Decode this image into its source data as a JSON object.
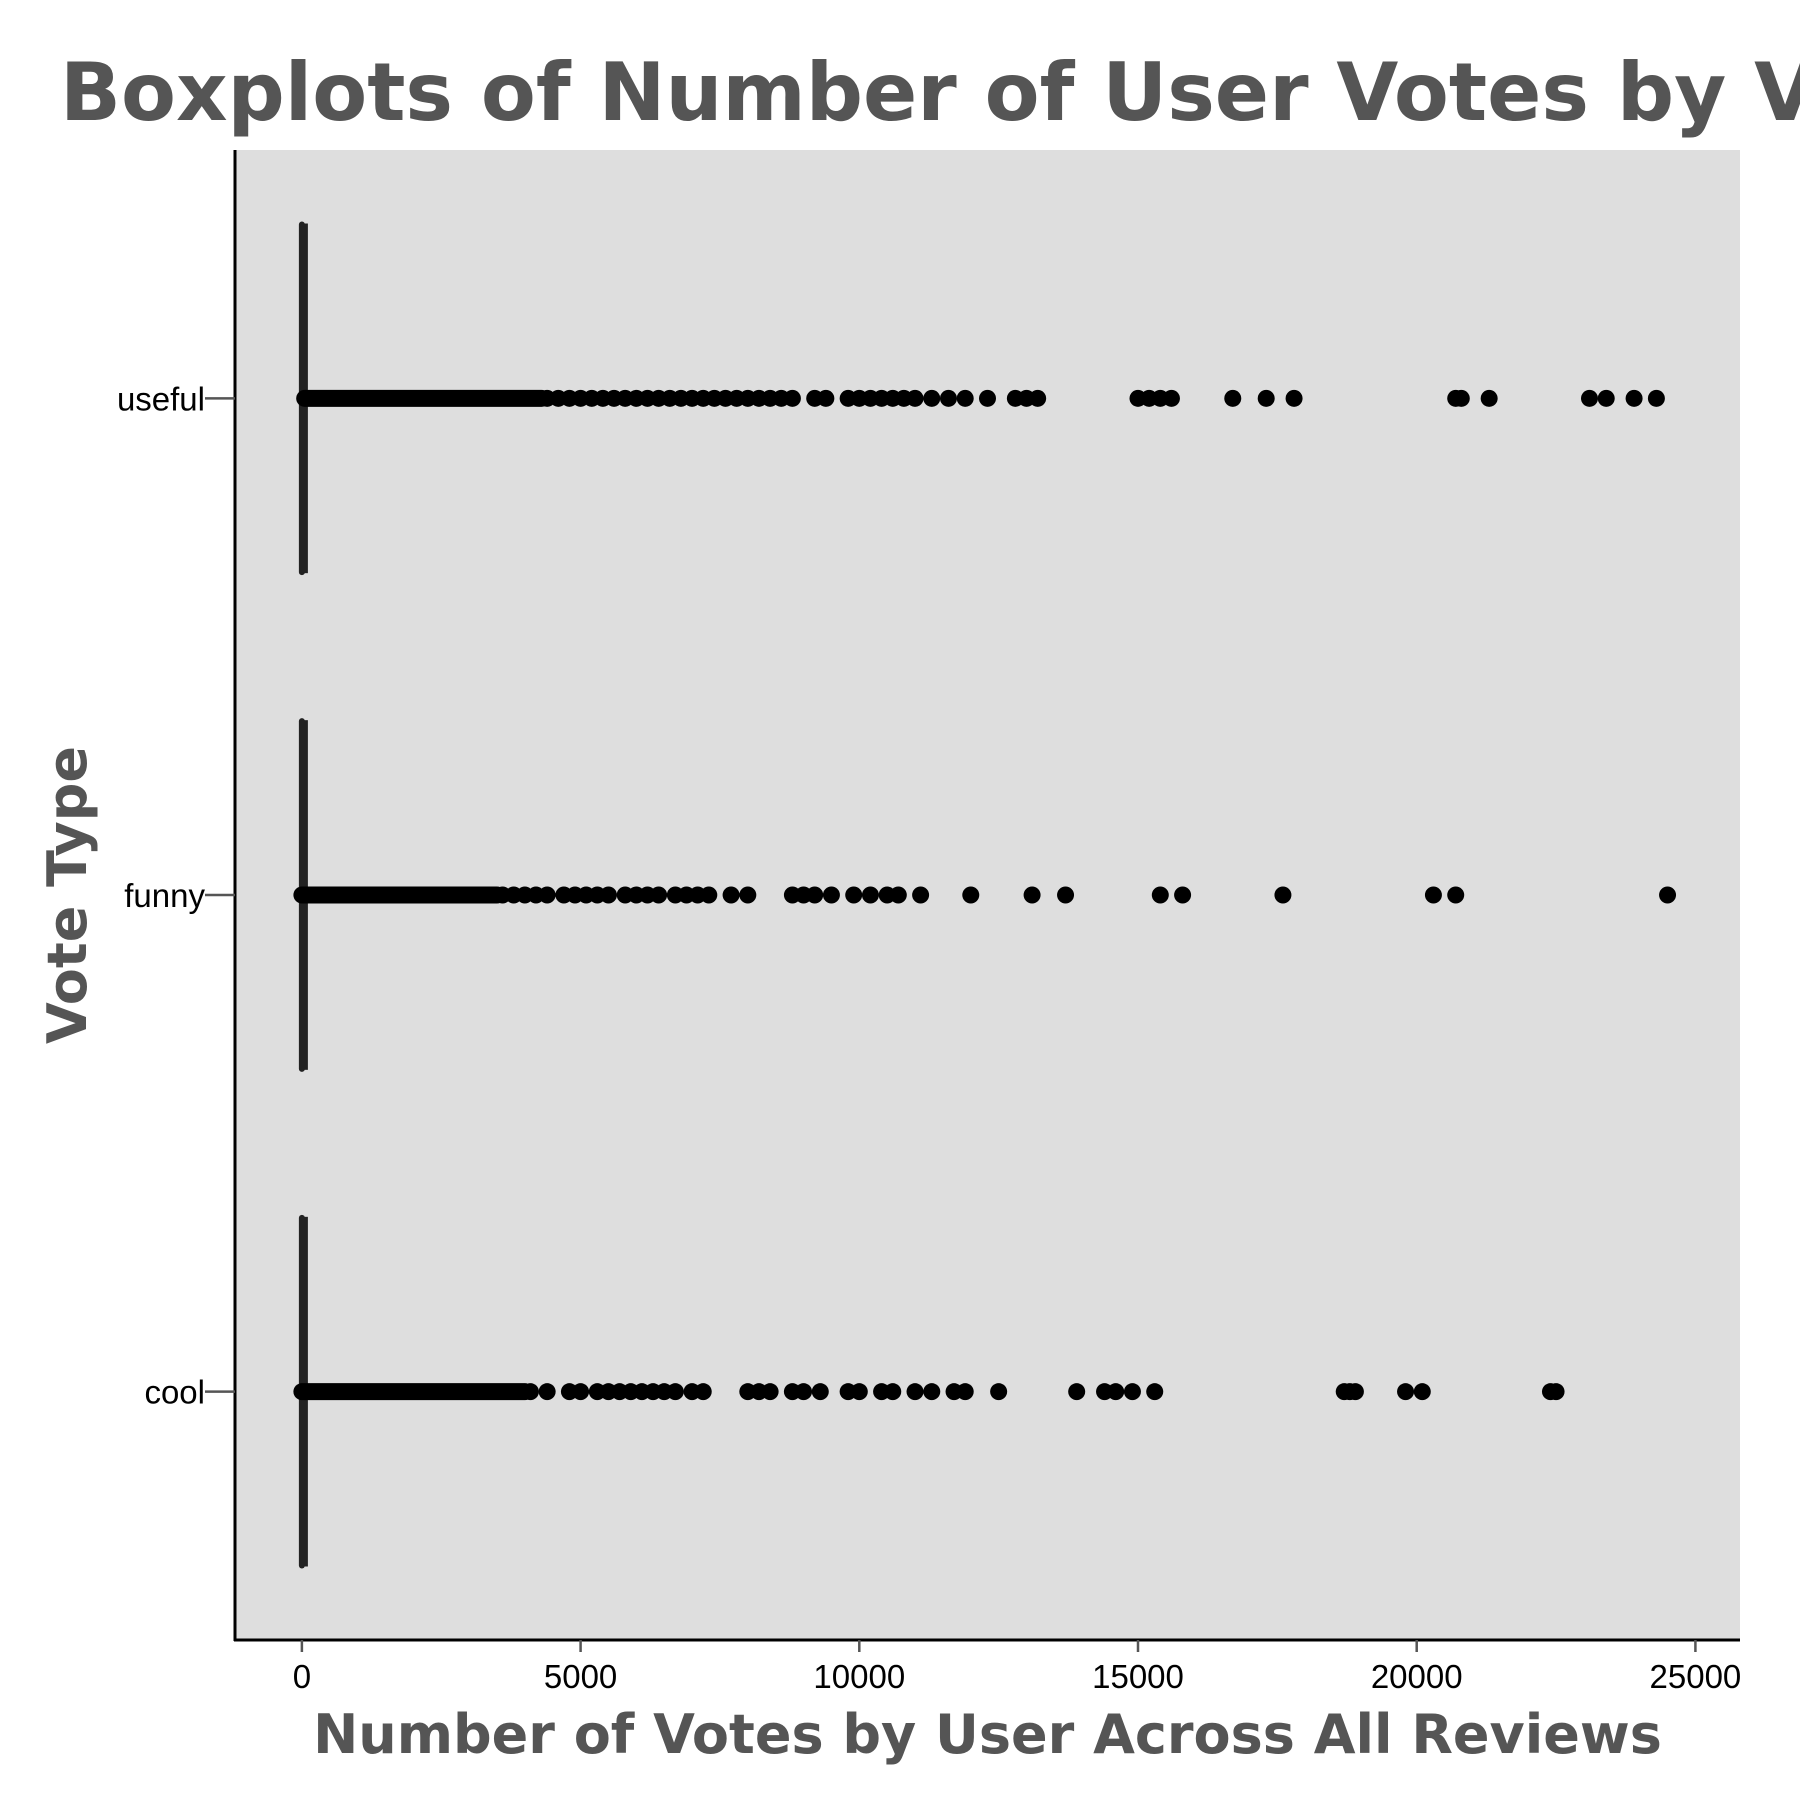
{
  "chart_data": {
    "type": "boxplot",
    "orientation": "horizontal",
    "title": "Boxplots of Number of User Votes by Vote Type",
    "xlabel": "Number of Votes by User Across All Reviews",
    "ylabel": "Vote Type",
    "xlim": [
      -1200,
      25800
    ],
    "x_ticks": [
      0,
      5000,
      10000,
      15000,
      20000,
      25000
    ],
    "categories": [
      "useful",
      "funny",
      "cool"
    ],
    "grid": false,
    "background_color": "#dedede",
    "point_color": "#000000",
    "box_color": "#222222",
    "text_color": "#555555",
    "series": [
      {
        "category": "useful",
        "whisker_low": 0,
        "q1": 0,
        "median": 0,
        "q3": 10,
        "whisker_high": 30,
        "outlier_band": [
          50,
          4300
        ],
        "outliers": [
          4400,
          4600,
          4800,
          5000,
          5200,
          5400,
          5600,
          5800,
          6000,
          6200,
          6400,
          6600,
          6800,
          7000,
          7200,
          7400,
          7600,
          7800,
          8000,
          8200,
          8400,
          8600,
          8800,
          9200,
          9400,
          9800,
          10000,
          10200,
          10400,
          10600,
          10800,
          11000,
          11300,
          11600,
          11900,
          12300,
          12800,
          13000,
          13200,
          15000,
          15200,
          15400,
          15600,
          16700,
          17300,
          17800,
          20700,
          20800,
          21300,
          23100,
          23400,
          23900,
          24300
        ]
      },
      {
        "category": "funny",
        "whisker_low": 0,
        "q1": 0,
        "median": 0,
        "q3": 5,
        "whisker_high": 20,
        "outlier_band": [
          0,
          3500
        ],
        "outliers": [
          3600,
          3800,
          4000,
          4200,
          4400,
          4700,
          4900,
          5100,
          5300,
          5500,
          5800,
          6000,
          6200,
          6400,
          6700,
          6900,
          7100,
          7300,
          7700,
          8000,
          8800,
          9000,
          9200,
          9500,
          9900,
          10200,
          10500,
          10700,
          11100,
          12000,
          13100,
          13700,
          15400,
          15800,
          17600,
          20300,
          20700,
          24500
        ]
      },
      {
        "category": "cool",
        "whisker_low": 0,
        "q1": 0,
        "median": 0,
        "q3": 5,
        "whisker_high": 20,
        "outlier_band": [
          0,
          4000
        ],
        "outliers": [
          4100,
          4400,
          4800,
          5000,
          5300,
          5500,
          5700,
          5900,
          6100,
          6300,
          6500,
          6700,
          7000,
          7200,
          8000,
          8200,
          8400,
          8800,
          9000,
          9300,
          9800,
          10000,
          10400,
          10600,
          11000,
          11300,
          11700,
          11900,
          12500,
          13900,
          14400,
          14600,
          14900,
          15300,
          18700,
          18800,
          18900,
          19800,
          20100,
          22400,
          22500
        ]
      }
    ]
  }
}
